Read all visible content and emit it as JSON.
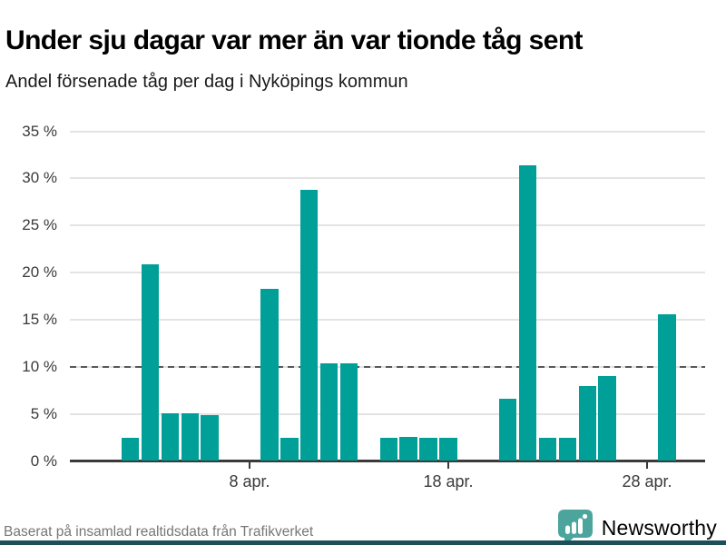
{
  "page": {
    "title": "Under sju dagar var mer än var tionde tåg sent",
    "subtitle": "Andel försenade tåg per dag i Nyköpings kommun",
    "source": "Baserat på insamlad realtidsdata från Trafikverket",
    "brand": "Newsworthy"
  },
  "colors": {
    "bar": "#00A099",
    "brand": "#43A49B",
    "grid": "#e4e4e4",
    "axis": "#3b3b3b",
    "reference": "#585858",
    "accent_strip": "#1d4f5a"
  },
  "chart_data": {
    "type": "bar",
    "title": "Under sju dagar var mer än var tionde tåg sent",
    "subtitle": "Andel försenade tåg per dag i Nyköpings kommun",
    "unit": "%",
    "xlabel": "",
    "ylabel": "",
    "ylim": [
      0,
      35
    ],
    "grid": true,
    "reference_line": {
      "value": 10,
      "style": "dashed"
    },
    "y_ticks": [
      {
        "value": 0,
        "label": "0 %"
      },
      {
        "value": 5,
        "label": "5 %"
      },
      {
        "value": 10,
        "label": "10 %"
      },
      {
        "value": 15,
        "label": "15 %"
      },
      {
        "value": 20,
        "label": "20 %"
      },
      {
        "value": 25,
        "label": "25 %"
      },
      {
        "value": 30,
        "label": "30 %"
      },
      {
        "value": 35,
        "label": "35 %"
      }
    ],
    "x_ticks": [
      {
        "day": 8,
        "label": "8 apr."
      },
      {
        "day": 18,
        "label": "18 apr."
      },
      {
        "day": 28,
        "label": "28 apr."
      }
    ],
    "points": [
      {
        "date": "2 apr.",
        "day": 2,
        "value": 2.5
      },
      {
        "date": "3 apr.",
        "day": 3,
        "value": 20.9
      },
      {
        "date": "4 apr.",
        "day": 4,
        "value": 5.1
      },
      {
        "date": "5 apr.",
        "day": 5,
        "value": 5.1
      },
      {
        "date": "6 apr.",
        "day": 6,
        "value": 4.9
      },
      {
        "date": "9 apr.",
        "day": 9,
        "value": 18.3
      },
      {
        "date": "10 apr.",
        "day": 10,
        "value": 2.5
      },
      {
        "date": "11 apr.",
        "day": 11,
        "value": 28.8
      },
      {
        "date": "12 apr.",
        "day": 12,
        "value": 10.4
      },
      {
        "date": "13 apr.",
        "day": 13,
        "value": 10.4
      },
      {
        "date": "15 apr.",
        "day": 15,
        "value": 2.5
      },
      {
        "date": "16 apr.",
        "day": 16,
        "value": 2.6
      },
      {
        "date": "17 apr.",
        "day": 17,
        "value": 2.5
      },
      {
        "date": "18 apr.",
        "day": 18,
        "value": 2.5
      },
      {
        "date": "21 apr.",
        "day": 21,
        "value": 6.6
      },
      {
        "date": "22 apr.",
        "day": 22,
        "value": 31.4
      },
      {
        "date": "23 apr.",
        "day": 23,
        "value": 2.5
      },
      {
        "date": "24 apr.",
        "day": 24,
        "value": 2.5
      },
      {
        "date": "25 apr.",
        "day": 25,
        "value": 8.0
      },
      {
        "date": "26 apr.",
        "day": 26,
        "value": 9.0
      },
      {
        "date": "29 apr.",
        "day": 29,
        "value": 15.6
      }
    ]
  }
}
